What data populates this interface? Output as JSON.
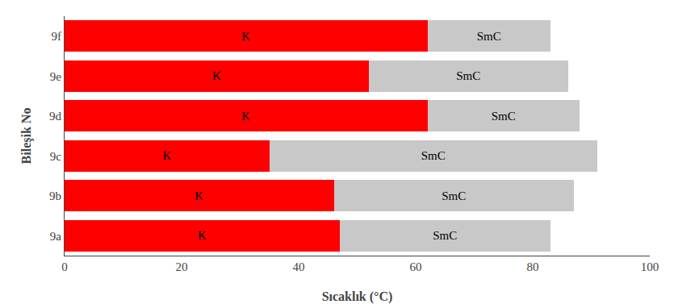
{
  "chart_data": {
    "type": "bar",
    "orientation": "horizontal",
    "stacked": true,
    "categories": [
      "9a",
      "9b",
      "9c",
      "9d",
      "9e",
      "9f"
    ],
    "series": [
      {
        "name": "K",
        "color": "#ff0000",
        "values": [
          47,
          46,
          35,
          62,
          52,
          62
        ]
      },
      {
        "name": "SmC",
        "color": "#c8c8c8",
        "values": [
          36,
          41,
          56,
          26,
          34,
          21
        ]
      }
    ],
    "xlabel": "Sıcaklık (°C)",
    "ylabel": "Bileşik No",
    "xlim": [
      0,
      100
    ],
    "xticks": [
      0,
      20,
      40,
      60,
      80,
      100
    ],
    "grid": false
  }
}
